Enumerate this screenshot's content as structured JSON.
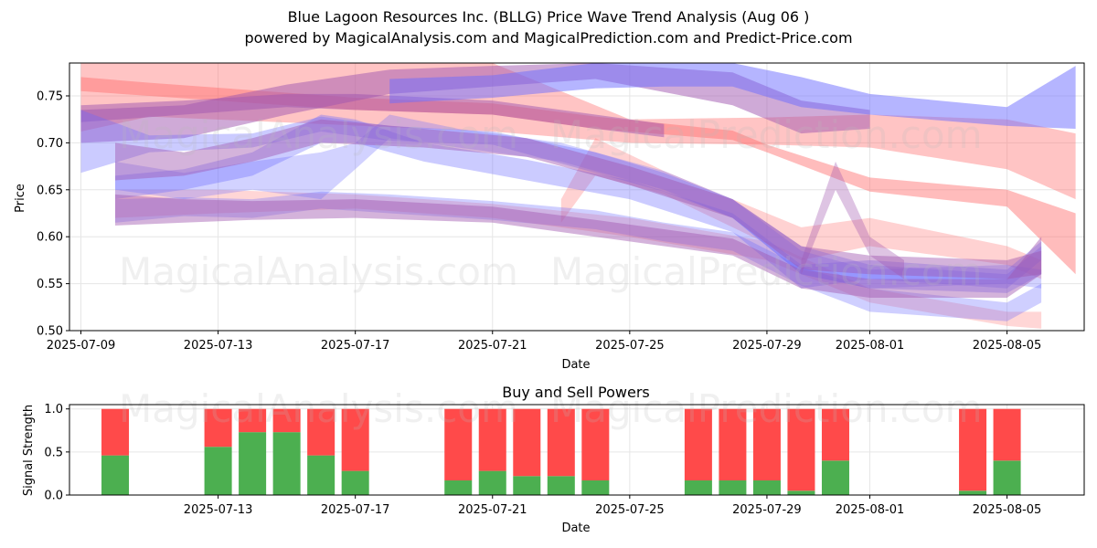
{
  "titles": {
    "line1": "Blue Lagoon Resources Inc. (BLLG) Price Wave Trend Analysis (Aug 06 )",
    "line2": "powered by MagicalAnalysis.com and MagicalPrediction.com and Predict-Price.com"
  },
  "watermarks": {
    "analysis": "MagicalAnalysis.com",
    "prediction": "MagicalPrediction.com"
  },
  "colors": {
    "blue_band": "#6b6bff",
    "red_band": "#ff6b6b",
    "buy": "#4caf50",
    "sell": "#ff4a4a",
    "grid": "#e6e6e6"
  },
  "chart_data": [
    {
      "type": "area",
      "title": "",
      "xlabel": "Date",
      "ylabel": "Price",
      "ylim": [
        0.5,
        0.785
      ],
      "xlim": [
        "2025-07-08T16:00",
        "2025-08-07T06:00"
      ],
      "x_ticks": [
        "2025-07-09",
        "2025-07-13",
        "2025-07-17",
        "2025-07-21",
        "2025-07-25",
        "2025-07-29",
        "2025-08-01",
        "2025-08-05"
      ],
      "y_ticks": [
        0.5,
        0.55,
        0.6,
        0.65,
        0.7,
        0.75
      ],
      "grid": true,
      "series": [
        {
          "name": "wave-red-1",
          "color": "red",
          "alpha": 0.45,
          "points": [
            [
              "2025-07-09",
              0.755,
              0.77
            ],
            [
              "2025-07-11",
              0.75,
              0.764
            ],
            [
              "2025-07-17",
              0.735,
              0.748
            ],
            [
              "2025-07-21",
              0.73,
              0.742
            ],
            [
              "2025-07-24",
              0.715,
              0.728
            ],
            [
              "2025-07-28",
              0.703,
              0.713
            ],
            [
              "2025-07-29",
              0.69,
              0.698
            ],
            [
              "2025-08-01",
              0.648,
              0.663
            ],
            [
              "2025-08-05",
              0.632,
              0.65
            ],
            [
              "2025-08-07",
              0.56,
              0.625
            ]
          ]
        },
        {
          "name": "wave-red-2",
          "color": "red",
          "alpha": 0.4,
          "points": [
            [
              "2025-07-09",
              0.712,
              0.785
            ],
            [
              "2025-07-11",
              0.728,
              0.785
            ],
            [
              "2025-07-21",
              0.712,
              0.785
            ],
            [
              "2025-07-25",
              0.7,
              0.725
            ],
            [
              "2025-07-29",
              0.698,
              0.727
            ],
            [
              "2025-08-01",
              0.695,
              0.73
            ],
            [
              "2025-08-05",
              0.672,
              0.725
            ],
            [
              "2025-08-07",
              0.64,
              0.71
            ]
          ]
        },
        {
          "name": "wave-red-3",
          "color": "red",
          "alpha": 0.28,
          "points": [
            [
              "2025-07-10",
              0.62,
              0.65
            ],
            [
              "2025-07-13",
              0.625,
              0.65
            ],
            [
              "2025-07-17",
              0.63,
              0.645
            ],
            [
              "2025-07-21",
              0.62,
              0.635
            ],
            [
              "2025-07-25",
              0.6,
              0.62
            ],
            [
              "2025-07-29",
              0.575,
              0.595
            ],
            [
              "2025-08-01",
              0.53,
              0.545
            ],
            [
              "2025-08-05",
              0.505,
              0.52
            ],
            [
              "2025-08-06",
              0.502,
              0.52
            ]
          ]
        },
        {
          "name": "wave-red-4",
          "color": "red",
          "alpha": 0.3,
          "points": [
            [
              "2025-07-23",
              0.615,
              0.64
            ],
            [
              "2025-07-24",
              0.665,
              0.705
            ],
            [
              "2025-07-26",
              0.645,
              0.67
            ],
            [
              "2025-07-28",
              0.61,
              0.64
            ],
            [
              "2025-07-30",
              0.575,
              0.61
            ],
            [
              "2025-08-01",
              0.59,
              0.62
            ],
            [
              "2025-08-05",
              0.57,
              0.59
            ],
            [
              "2025-08-06",
              0.555,
              0.575
            ]
          ]
        },
        {
          "name": "wave-purple-1",
          "color": "purple",
          "alpha": 0.5,
          "points": [
            [
              "2025-07-09",
              0.722,
              0.74
            ],
            [
              "2025-07-12",
              0.73,
              0.745
            ],
            [
              "2025-07-15",
              0.738,
              0.752
            ],
            [
              "2025-07-17",
              0.735,
              0.752
            ],
            [
              "2025-07-21",
              0.73,
              0.745
            ],
            [
              "2025-07-24",
              0.715,
              0.73
            ],
            [
              "2025-07-26",
              0.706,
              0.72
            ]
          ]
        },
        {
          "name": "wave-purple-2",
          "color": "purple",
          "alpha": 0.5,
          "points": [
            [
              "2025-07-09",
              0.7,
              0.735
            ],
            [
              "2025-07-12",
              0.705,
              0.74
            ],
            [
              "2025-07-15",
              0.73,
              0.762
            ],
            [
              "2025-07-18",
              0.752,
              0.778
            ],
            [
              "2025-07-21",
              0.76,
              0.782
            ],
            [
              "2025-07-24",
              0.768,
              0.785
            ],
            [
              "2025-07-28",
              0.74,
              0.775
            ],
            [
              "2025-07-30",
              0.71,
              0.745
            ],
            [
              "2025-08-01",
              0.715,
              0.735
            ]
          ]
        },
        {
          "name": "wave-blue-1",
          "color": "blue",
          "alpha": 0.5,
          "points": [
            [
              "2025-07-18",
              0.742,
              0.768
            ],
            [
              "2025-07-21",
              0.748,
              0.772
            ],
            [
              "2025-07-24",
              0.758,
              0.785
            ],
            [
              "2025-07-26",
              0.76,
              0.785
            ],
            [
              "2025-07-28",
              0.76,
              0.785
            ],
            [
              "2025-07-30",
              0.738,
              0.77
            ],
            [
              "2025-08-01",
              0.73,
              0.752
            ],
            [
              "2025-08-05",
              0.718,
              0.738
            ],
            [
              "2025-08-07",
              0.715,
              0.782
            ]
          ]
        },
        {
          "name": "wave-blue-2",
          "color": "blue",
          "alpha": 0.35,
          "points": [
            [
              "2025-07-09",
              0.668,
              0.735
            ],
            [
              "2025-07-11",
              0.69,
              0.708
            ],
            [
              "2025-07-14",
              0.695,
              0.71
            ],
            [
              "2025-07-16",
              0.712,
              0.728
            ],
            [
              "2025-07-18",
              0.702,
              0.718
            ],
            [
              "2025-07-21",
              0.698,
              0.712
            ],
            [
              "2025-07-24",
              0.668,
              0.69
            ],
            [
              "2025-07-26",
              0.648,
              0.668
            ],
            [
              "2025-07-28",
              0.62,
              0.64
            ],
            [
              "2025-07-30",
              0.56,
              0.59
            ],
            [
              "2025-08-01",
              0.545,
              0.57
            ],
            [
              "2025-08-05",
              0.54,
              0.56
            ],
            [
              "2025-08-06",
              0.56,
              0.59
            ]
          ]
        },
        {
          "name": "wave-blue-3",
          "color": "blue",
          "alpha": 0.35,
          "points": [
            [
              "2025-07-10",
              0.64,
              0.665
            ],
            [
              "2025-07-12",
              0.65,
              0.672
            ],
            [
              "2025-07-14",
              0.665,
              0.69
            ],
            [
              "2025-07-16",
              0.7,
              0.73
            ],
            [
              "2025-07-17",
              0.7,
              0.725
            ],
            [
              "2025-07-19",
              0.68,
              0.7
            ],
            [
              "2025-07-22",
              0.66,
              0.682
            ],
            [
              "2025-07-25",
              0.64,
              0.66
            ],
            [
              "2025-07-28",
              0.605,
              0.625
            ],
            [
              "2025-07-30",
              0.545,
              0.57
            ],
            [
              "2025-08-01",
              0.555,
              0.575
            ],
            [
              "2025-08-05",
              0.545,
              0.565
            ],
            [
              "2025-08-06",
              0.575,
              0.595
            ]
          ]
        },
        {
          "name": "wave-blue-4",
          "color": "blue",
          "alpha": 0.32,
          "points": [
            [
              "2025-07-10",
              0.615,
              0.64
            ],
            [
              "2025-07-12",
              0.622,
              0.642
            ],
            [
              "2025-07-14",
              0.62,
              0.64
            ],
            [
              "2025-07-16",
              0.63,
              0.648
            ],
            [
              "2025-07-18",
              0.625,
              0.645
            ],
            [
              "2025-07-21",
              0.618,
              0.638
            ],
            [
              "2025-07-24",
              0.608,
              0.628
            ],
            [
              "2025-07-26",
              0.595,
              0.615
            ],
            [
              "2025-07-28",
              0.585,
              0.605
            ],
            [
              "2025-07-30",
              0.548,
              0.568
            ],
            [
              "2025-08-01",
              0.52,
              0.545
            ],
            [
              "2025-08-05",
              0.51,
              0.53
            ],
            [
              "2025-08-06",
              0.53,
              0.55
            ]
          ]
        },
        {
          "name": "wave-blue-5",
          "color": "blue",
          "alpha": 0.3,
          "points": [
            [
              "2025-07-10",
              0.65,
              0.68
            ],
            [
              "2025-07-12",
              0.64,
              0.668
            ],
            [
              "2025-07-14",
              0.65,
              0.68
            ],
            [
              "2025-07-16",
              0.64,
              0.69
            ],
            [
              "2025-07-17",
              0.672,
              0.7
            ],
            [
              "2025-07-18",
              0.705,
              0.73
            ],
            [
              "2025-07-20",
              0.695,
              0.715
            ],
            [
              "2025-07-23",
              0.68,
              0.7
            ],
            [
              "2025-07-26",
              0.65,
              0.67
            ],
            [
              "2025-07-28",
              0.62,
              0.64
            ],
            [
              "2025-07-30",
              0.56,
              0.585
            ],
            [
              "2025-08-01",
              0.545,
              0.565
            ],
            [
              "2025-08-05",
              0.55,
              0.57
            ],
            [
              "2025-08-06",
              0.545,
              0.565
            ]
          ]
        },
        {
          "name": "wave-purple-3",
          "color": "purple",
          "alpha": 0.45,
          "points": [
            [
              "2025-07-10",
              0.612,
              0.645
            ],
            [
              "2025-07-12",
              0.615,
              0.64
            ],
            [
              "2025-07-14",
              0.618,
              0.638
            ],
            [
              "2025-07-17",
              0.62,
              0.64
            ],
            [
              "2025-07-21",
              0.615,
              0.632
            ],
            [
              "2025-07-24",
              0.6,
              0.618
            ],
            [
              "2025-07-26",
              0.59,
              0.608
            ],
            [
              "2025-07-28",
              0.58,
              0.598
            ],
            [
              "2025-07-30",
              0.545,
              0.565
            ],
            [
              "2025-08-01",
              0.535,
              0.555
            ],
            [
              "2025-08-05",
              0.535,
              0.555
            ],
            [
              "2025-08-06",
              0.56,
              0.6
            ]
          ]
        },
        {
          "name": "wave-purple-4",
          "color": "purple",
          "alpha": 0.45,
          "points": [
            [
              "2025-07-10",
              0.66,
              0.7
            ],
            [
              "2025-07-12",
              0.665,
              0.69
            ],
            [
              "2025-07-14",
              0.68,
              0.705
            ],
            [
              "2025-07-16",
              0.7,
              0.725
            ],
            [
              "2025-07-19",
              0.695,
              0.715
            ],
            [
              "2025-07-22",
              0.685,
              0.705
            ],
            [
              "2025-07-25",
              0.655,
              0.675
            ],
            [
              "2025-07-28",
              0.62,
              0.64
            ],
            [
              "2025-07-30",
              0.565,
              0.59
            ],
            [
              "2025-08-01",
              0.56,
              0.58
            ],
            [
              "2025-08-05",
              0.555,
              0.575
            ],
            [
              "2025-08-06",
              0.56,
              0.585
            ]
          ]
        },
        {
          "name": "wave-purple-spike",
          "color": "purple",
          "alpha": 0.35,
          "points": [
            [
              "2025-07-30",
              0.56,
              0.575
            ],
            [
              "2025-07-31",
              0.65,
              0.68
            ],
            [
              "2025-08-01",
              0.58,
              0.6
            ],
            [
              "2025-08-02",
              0.555,
              0.575
            ]
          ]
        }
      ]
    },
    {
      "type": "bar",
      "title": "Buy and Sell Powers",
      "xlabel": "Date",
      "ylabel": "Signal Strength",
      "ylim": [
        0,
        1.05
      ],
      "x_ticks": [
        "2025-07-13",
        "2025-07-17",
        "2025-07-21",
        "2025-07-25",
        "2025-07-29",
        "2025-08-01",
        "2025-08-05"
      ],
      "y_ticks": [
        0.0,
        0.5,
        1.0
      ],
      "grid": true,
      "categories": [
        "2025-07-10",
        "2025-07-13",
        "2025-07-14",
        "2025-07-15",
        "2025-07-16",
        "2025-07-17",
        "2025-07-20",
        "2025-07-21",
        "2025-07-22",
        "2025-07-23",
        "2025-07-24",
        "2025-07-27",
        "2025-07-28",
        "2025-07-29",
        "2025-07-30",
        "2025-07-31",
        "2025-08-04",
        "2025-08-05"
      ],
      "series": [
        {
          "name": "Buy",
          "values": [
            0.46,
            0.56,
            0.73,
            0.73,
            0.46,
            0.28,
            0.17,
            0.28,
            0.22,
            0.22,
            0.17,
            0.17,
            0.17,
            0.17,
            0.05,
            0.4,
            0.05,
            0.4
          ]
        },
        {
          "name": "Sell",
          "values": [
            0.54,
            0.44,
            0.27,
            0.27,
            0.54,
            0.72,
            0.83,
            0.72,
            0.78,
            0.78,
            0.83,
            0.83,
            0.83,
            0.83,
            0.95,
            0.6,
            0.95,
            0.6
          ]
        }
      ]
    }
  ]
}
